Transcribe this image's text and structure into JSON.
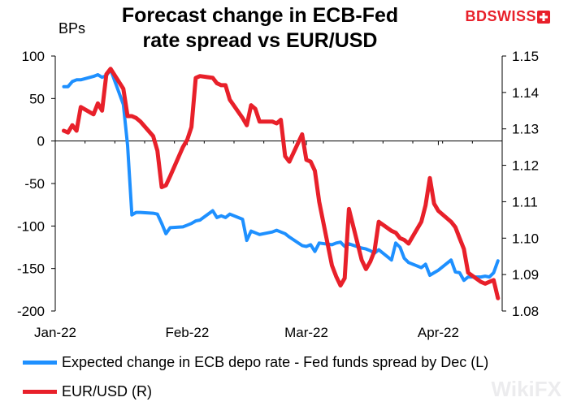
{
  "brand": {
    "left": "BD",
    "right": "SWISS",
    "accent": "#e8202a"
  },
  "watermark": "WikiFX",
  "chart_data": {
    "type": "line",
    "title": "Forecast change in ECB-Fed rate spread vs EUR/USD",
    "title_lines": [
      "Forecast change in ECB-Fed",
      "rate spread vs EUR/USD"
    ],
    "ylabel_left": "BPs",
    "x_tick_labels": [
      "Jan-22",
      "Feb-22",
      "Mar-22",
      "Apr-22"
    ],
    "x_ticks": [
      "2022-01-01",
      "2022-02-01",
      "2022-03-01",
      "2022-04-01"
    ],
    "xlim": [
      "2022-01-01",
      "2022-04-16"
    ],
    "ylim_left": [
      -200,
      100
    ],
    "yticks_left": [
      100,
      50,
      0,
      -50,
      -100,
      -150,
      -200
    ],
    "ylim_right": [
      1.08,
      1.15
    ],
    "yticks_right": [
      1.15,
      1.14,
      1.13,
      1.12,
      1.11,
      1.1,
      1.09,
      1.08
    ],
    "right_tick_labels": [
      "1.15",
      "1.14",
      "1.13",
      "1.12",
      "1.11",
      "1.10",
      "1.09",
      "1.08"
    ],
    "series": [
      {
        "name": "Expected change in ECB depo rate - Fed funds spread by Dec (L)",
        "axis": "left",
        "color": "#1e90ff",
        "x": [
          "2022-01-03",
          "2022-01-04",
          "2022-01-05",
          "2022-01-06",
          "2022-01-07",
          "2022-01-10",
          "2022-01-11",
          "2022-01-12",
          "2022-01-13",
          "2022-01-14",
          "2022-01-17",
          "2022-01-18",
          "2022-01-19",
          "2022-01-20",
          "2022-01-21",
          "2022-01-24",
          "2022-01-25",
          "2022-01-26",
          "2022-01-27",
          "2022-01-28",
          "2022-01-31",
          "2022-02-01",
          "2022-02-02",
          "2022-02-03",
          "2022-02-04",
          "2022-02-07",
          "2022-02-08",
          "2022-02-09",
          "2022-02-10",
          "2022-02-11",
          "2022-02-14",
          "2022-02-15",
          "2022-02-16",
          "2022-02-17",
          "2022-02-18",
          "2022-02-21",
          "2022-02-22",
          "2022-02-23",
          "2022-02-24",
          "2022-02-25",
          "2022-02-28",
          "2022-03-01",
          "2022-03-02",
          "2022-03-03",
          "2022-03-04",
          "2022-03-07",
          "2022-03-08",
          "2022-03-09",
          "2022-03-10",
          "2022-03-11",
          "2022-03-14",
          "2022-03-15",
          "2022-03-16",
          "2022-03-17",
          "2022-03-18",
          "2022-03-21",
          "2022-03-22",
          "2022-03-23",
          "2022-03-24",
          "2022-03-25",
          "2022-03-28",
          "2022-03-29",
          "2022-03-30",
          "2022-03-31",
          "2022-04-01",
          "2022-04-04",
          "2022-04-05",
          "2022-04-06",
          "2022-04-07",
          "2022-04-08",
          "2022-04-11",
          "2022-04-12"
        ],
        "values": [
          64,
          64,
          70,
          72,
          72,
          76,
          78,
          75,
          77,
          84,
          43,
          -5,
          -87,
          -84,
          -84,
          -85,
          -86,
          -97,
          -109,
          -102,
          -101,
          -99,
          -97,
          -94,
          -93,
          -82,
          -90,
          -88,
          -90,
          -86,
          -92,
          -117,
          -106,
          -108,
          -110,
          -107,
          -105,
          -107,
          -109,
          -113,
          -123,
          -124,
          -122,
          -130,
          -120,
          -122,
          -120,
          -119,
          -124,
          -121,
          -126,
          -127,
          -129,
          -132,
          -128,
          -140,
          -120,
          -125,
          -138,
          -143,
          -149,
          -145,
          -158,
          -155,
          -152,
          -140,
          -154,
          -155,
          -164,
          -160,
          -160,
          -159
        ],
        "extra": {
          "x": [
            "2022-04-13",
            "2022-04-14",
            "2022-04-15"
          ],
          "values": [
            -160,
            -155,
            -141
          ]
        }
      },
      {
        "name": "EUR/USD (R)",
        "axis": "right",
        "color": "#e8202a",
        "x": [
          "2022-01-03",
          "2022-01-04",
          "2022-01-05",
          "2022-01-06",
          "2022-01-07",
          "2022-01-10",
          "2022-01-11",
          "2022-01-12",
          "2022-01-13",
          "2022-01-14",
          "2022-01-17",
          "2022-01-18",
          "2022-01-19",
          "2022-01-20",
          "2022-01-21",
          "2022-01-24",
          "2022-01-25",
          "2022-01-26",
          "2022-01-27",
          "2022-01-28",
          "2022-01-31",
          "2022-02-01",
          "2022-02-02",
          "2022-02-03",
          "2022-02-04",
          "2022-02-07",
          "2022-02-08",
          "2022-02-09",
          "2022-02-10",
          "2022-02-11",
          "2022-02-14",
          "2022-02-15",
          "2022-02-16",
          "2022-02-17",
          "2022-02-18",
          "2022-02-21",
          "2022-02-22",
          "2022-02-23",
          "2022-02-24",
          "2022-02-25",
          "2022-02-28",
          "2022-03-01",
          "2022-03-02",
          "2022-03-03",
          "2022-03-04",
          "2022-03-07",
          "2022-03-08",
          "2022-03-09",
          "2022-03-10",
          "2022-03-11",
          "2022-03-14",
          "2022-03-15",
          "2022-03-16",
          "2022-03-17",
          "2022-03-18",
          "2022-03-21",
          "2022-03-22",
          "2022-03-23",
          "2022-03-24",
          "2022-03-25",
          "2022-03-28",
          "2022-03-29",
          "2022-03-30",
          "2022-03-31",
          "2022-04-01",
          "2022-04-04",
          "2022-04-05",
          "2022-04-06",
          "2022-04-07",
          "2022-04-08",
          "2022-04-11",
          "2022-04-12",
          "2022-04-13",
          "2022-04-14",
          "2022-04-15"
        ],
        "values": [
          1.1295,
          1.129,
          1.131,
          1.1295,
          1.136,
          1.134,
          1.137,
          1.135,
          1.145,
          1.1465,
          1.141,
          1.1335,
          1.1335,
          1.133,
          1.132,
          1.128,
          1.124,
          1.114,
          1.1145,
          1.117,
          1.125,
          1.127,
          1.1305,
          1.144,
          1.1445,
          1.144,
          1.1425,
          1.142,
          1.142,
          1.138,
          1.133,
          1.131,
          1.1365,
          1.1355,
          1.132,
          1.132,
          1.1315,
          1.1325,
          1.1225,
          1.121,
          1.1285,
          1.1215,
          1.121,
          1.1185,
          1.11,
          1.0925,
          1.0895,
          1.087,
          1.089,
          1.108,
          1.094,
          1.0915,
          1.0935,
          1.0965,
          1.1045,
          1.102,
          1.1015,
          1.1,
          1.0995,
          1.0985,
          1.1045,
          1.109,
          1.1165,
          1.1095,
          1.1075,
          1.1045,
          1.103,
          1.1,
          1.097,
          1.0905,
          1.088,
          1.0875,
          1.088,
          1.0885,
          1.0835
        ]
      }
    ]
  }
}
